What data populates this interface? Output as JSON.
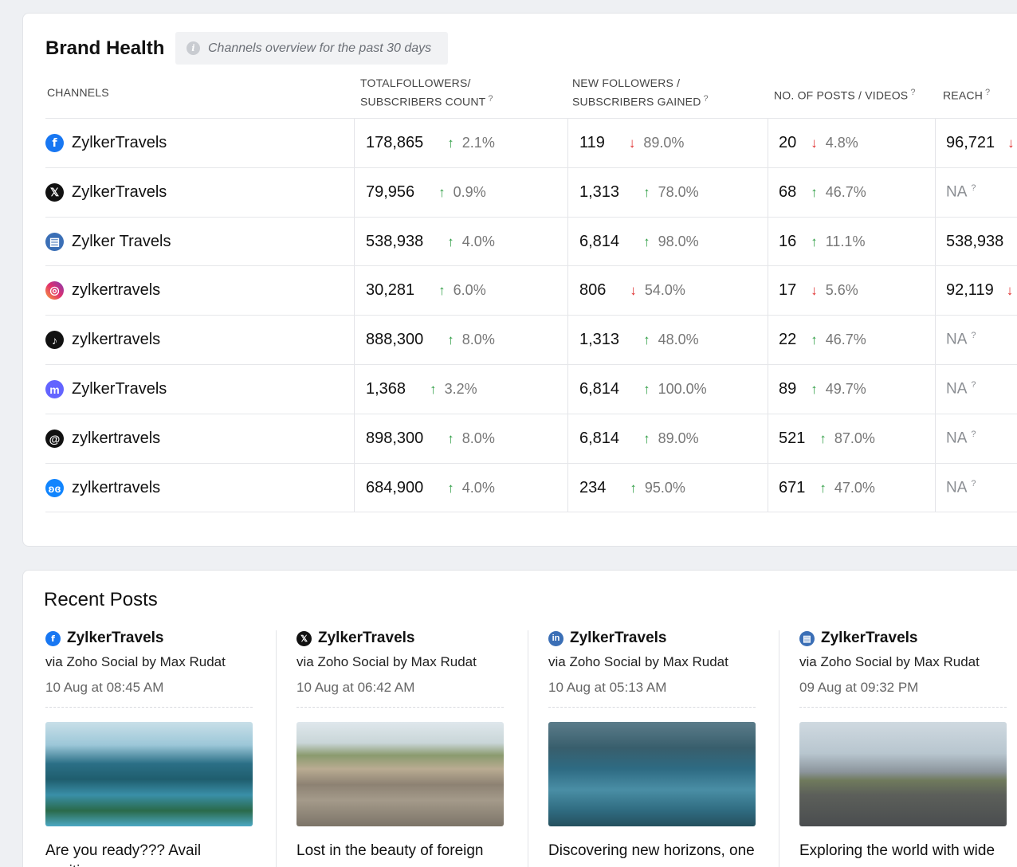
{
  "brand_health": {
    "title": "Brand Health",
    "subtitle": "Channels overview for the past 30 days",
    "headers": {
      "channels": "CHANNELS",
      "followers_line1": "TOTALFOLLOWERS/",
      "followers_line2": "SUBSCRIBERS COUNT",
      "new_line1": "NEW FOLLOWERS /",
      "new_line2": "SUBSCRIBERS GAINED",
      "posts": "NO. OF POSTS / VIDEOS",
      "reach": "REACH",
      "help": "?"
    },
    "rows": [
      {
        "icon": "facebook-icon",
        "glyph": "f",
        "cls": "fb",
        "name": "ZylkerTravels",
        "followers": "178,865",
        "followers_trend": "2.1%",
        "followers_dir": "up",
        "new": "119",
        "new_trend": "89.0%",
        "new_dir": "down",
        "posts": "20",
        "posts_trend": "4.8%",
        "posts_dir": "down",
        "reach": "96,721",
        "reach_na": false,
        "reach_dir": "down"
      },
      {
        "icon": "x-icon",
        "glyph": "𝕏",
        "cls": "x",
        "name": "ZylkerTravels",
        "followers": "79,956",
        "followers_trend": "0.9%",
        "followers_dir": "up",
        "new": "1,313",
        "new_trend": "78.0%",
        "new_dir": "up",
        "posts": "68",
        "posts_trend": "46.7%",
        "posts_dir": "up",
        "reach": "NA",
        "reach_na": true
      },
      {
        "icon": "google-business-icon",
        "glyph": "▤",
        "cls": "gmb",
        "name": "Zylker Travels",
        "followers": "538,938",
        "followers_trend": "4.0%",
        "followers_dir": "up",
        "new": "6,814",
        "new_trend": "98.0%",
        "new_dir": "up",
        "posts": "16",
        "posts_trend": "11.1%",
        "posts_dir": "up",
        "reach": "538,938",
        "reach_na": false
      },
      {
        "icon": "instagram-icon",
        "glyph": "◎",
        "cls": "ig",
        "name": "zylkertravels",
        "followers": "30,281",
        "followers_trend": "6.0%",
        "followers_dir": "up",
        "new": "806",
        "new_trend": "54.0%",
        "new_dir": "down",
        "posts": "17",
        "posts_trend": "5.6%",
        "posts_dir": "down",
        "reach": "92,119",
        "reach_na": false,
        "reach_dir": "down"
      },
      {
        "icon": "tiktok-icon",
        "glyph": "♪",
        "cls": "tt",
        "name": "zylkertravels",
        "followers": "888,300",
        "followers_trend": "8.0%",
        "followers_dir": "up",
        "new": "1,313",
        "new_trend": "48.0%",
        "new_dir": "up",
        "posts": "22",
        "posts_trend": "46.7%",
        "posts_dir": "up",
        "reach": "NA",
        "reach_na": true
      },
      {
        "icon": "mastodon-icon",
        "glyph": "m",
        "cls": "md",
        "name": "ZylkerTravels",
        "followers": "1,368",
        "followers_trend": "3.2%",
        "followers_dir": "up",
        "new": "6,814",
        "new_trend": "100.0%",
        "new_dir": "up",
        "posts": "89",
        "posts_trend": "49.7%",
        "posts_dir": "up",
        "reach": "NA",
        "reach_na": true
      },
      {
        "icon": "threads-icon",
        "glyph": "@",
        "cls": "th",
        "name": "zylkertravels",
        "followers": "898,300",
        "followers_trend": "8.0%",
        "followers_dir": "up",
        "new": "6,814",
        "new_trend": "89.0%",
        "new_dir": "up",
        "posts": "521",
        "posts_trend": "87.0%",
        "posts_dir": "up",
        "reach": "NA",
        "reach_na": true
      },
      {
        "icon": "bluesky-icon",
        "glyph": "ʚɞ",
        "cls": "bs",
        "name": "zylkertravels",
        "followers": "684,900",
        "followers_trend": "4.0%",
        "followers_dir": "up",
        "new": "234",
        "new_trend": "95.0%",
        "new_dir": "up",
        "posts": "671",
        "posts_trend": "47.0%",
        "posts_dir": "up",
        "reach": "NA",
        "reach_na": true
      }
    ]
  },
  "recent_posts": {
    "title": "Recent Posts",
    "posts": [
      {
        "icon": "facebook-icon",
        "glyph": "f",
        "cls": "fb",
        "name": "ZylkerTravels",
        "via": "via Zoho Social by Max Rudat",
        "when": "10 Aug at 08:45 AM",
        "image": "island-lagoon-image",
        "caption": "Are you ready??? Avail exciting"
      },
      {
        "icon": "x-icon",
        "glyph": "𝕏",
        "cls": "x",
        "name": "ZylkerTravels",
        "via": "via Zoho Social by Max Rudat",
        "when": "10 Aug at 06:42 AM",
        "image": "amphitheater-image",
        "caption": "Lost in the beauty of foreign"
      },
      {
        "icon": "linkedin-icon",
        "glyph": "in",
        "cls": "gmb",
        "name": "ZylkerTravels",
        "via": "via Zoho Social by Max Rudat",
        "when": "10 Aug at 05:13 AM",
        "image": "fjord-image",
        "caption": "Discovering new horizons, one"
      },
      {
        "icon": "google-business-icon",
        "glyph": "▤",
        "cls": "gmb",
        "name": "ZylkerTravels",
        "via": "via Zoho Social by Max Rudat",
        "when": "09 Aug at 09:32 PM",
        "image": "open-road-image",
        "caption": "Exploring the world with wide"
      }
    ]
  }
}
